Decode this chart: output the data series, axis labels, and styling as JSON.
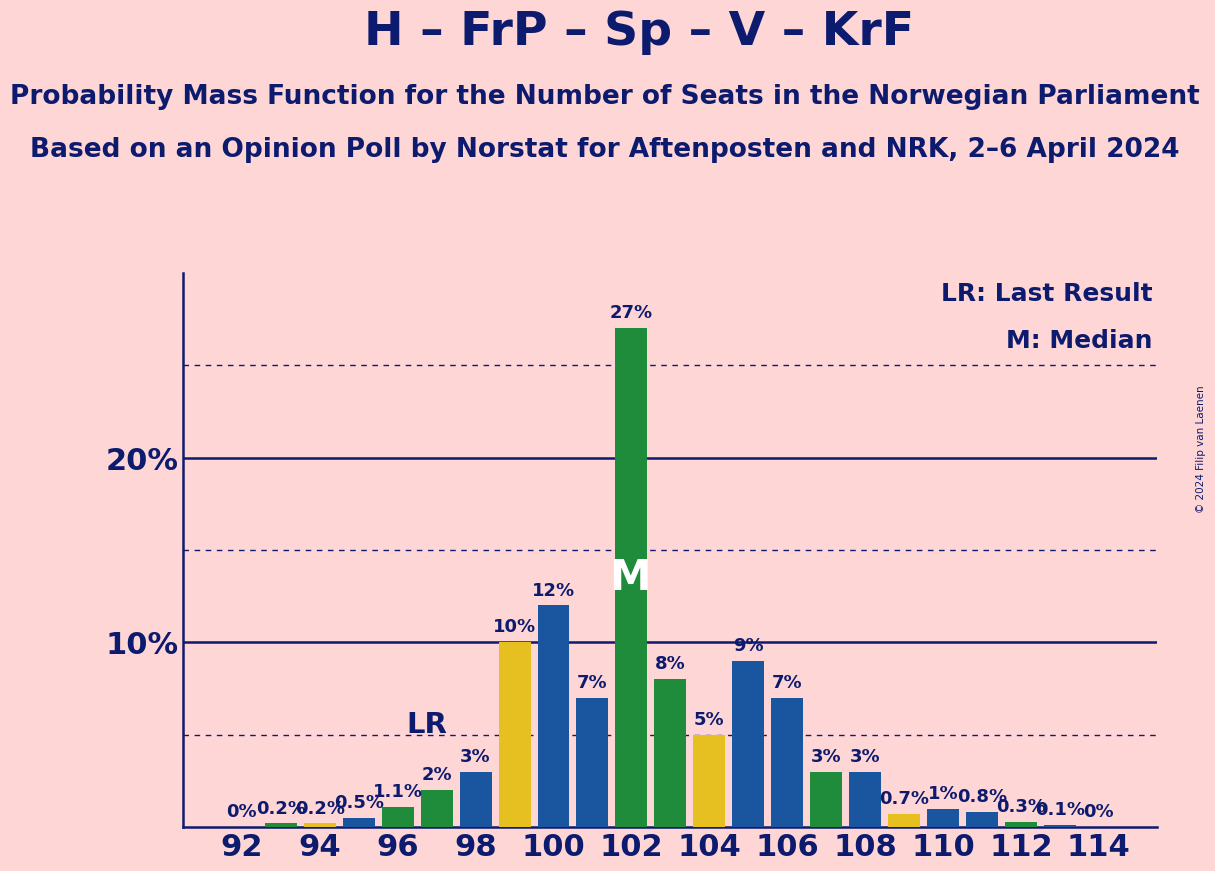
{
  "title": "H – FrP – Sp – V – KrF",
  "subtitle1": "Probability Mass Function for the Number of Seats in the Norwegian Parliament",
  "subtitle2": "Based on an Opinion Poll by Norstat for Aftenposten and NRK, 2–6 April 2024",
  "copyright": "© 2024 Filip van Laenen",
  "background_color": "#ffd6d6",
  "title_color": "#0d1b6e",
  "bar_data": [
    {
      "seat": 92,
      "value": 0.0,
      "color": "#1a56a0"
    },
    {
      "seat": 93,
      "value": 0.2,
      "color": "#1e8c3a"
    },
    {
      "seat": 94,
      "value": 0.2,
      "color": "#e6c020"
    },
    {
      "seat": 95,
      "value": 0.5,
      "color": "#1a56a0"
    },
    {
      "seat": 96,
      "value": 1.1,
      "color": "#1e8c3a"
    },
    {
      "seat": 97,
      "value": 2.0,
      "color": "#1e8c3a"
    },
    {
      "seat": 98,
      "value": 3.0,
      "color": "#1a56a0"
    },
    {
      "seat": 99,
      "value": 10.0,
      "color": "#e6c020"
    },
    {
      "seat": 100,
      "value": 12.0,
      "color": "#1a56a0"
    },
    {
      "seat": 101,
      "value": 7.0,
      "color": "#1a56a0"
    },
    {
      "seat": 102,
      "value": 27.0,
      "color": "#1e8c3a"
    },
    {
      "seat": 103,
      "value": 8.0,
      "color": "#1e8c3a"
    },
    {
      "seat": 104,
      "value": 5.0,
      "color": "#e6c020"
    },
    {
      "seat": 105,
      "value": 9.0,
      "color": "#1a56a0"
    },
    {
      "seat": 106,
      "value": 7.0,
      "color": "#1a56a0"
    },
    {
      "seat": 107,
      "value": 3.0,
      "color": "#1e8c3a"
    },
    {
      "seat": 108,
      "value": 3.0,
      "color": "#1a56a0"
    },
    {
      "seat": 109,
      "value": 0.7,
      "color": "#e6c020"
    },
    {
      "seat": 110,
      "value": 1.0,
      "color": "#1a56a0"
    },
    {
      "seat": 111,
      "value": 0.8,
      "color": "#1a56a0"
    },
    {
      "seat": 112,
      "value": 0.3,
      "color": "#1e8c3a"
    },
    {
      "seat": 113,
      "value": 0.1,
      "color": "#1a56a0"
    },
    {
      "seat": 114,
      "value": 0.0,
      "color": "#1a56a0"
    }
  ],
  "lr_seat": 97,
  "median_seat": 102,
  "solid_lines": [
    10,
    20
  ],
  "dotted_lines": [
    5,
    15,
    25
  ],
  "title_fontsize": 34,
  "subtitle_fontsize": 19,
  "bar_label_fontsize": 13,
  "tick_fontsize": 22,
  "legend_fontsize": 18
}
